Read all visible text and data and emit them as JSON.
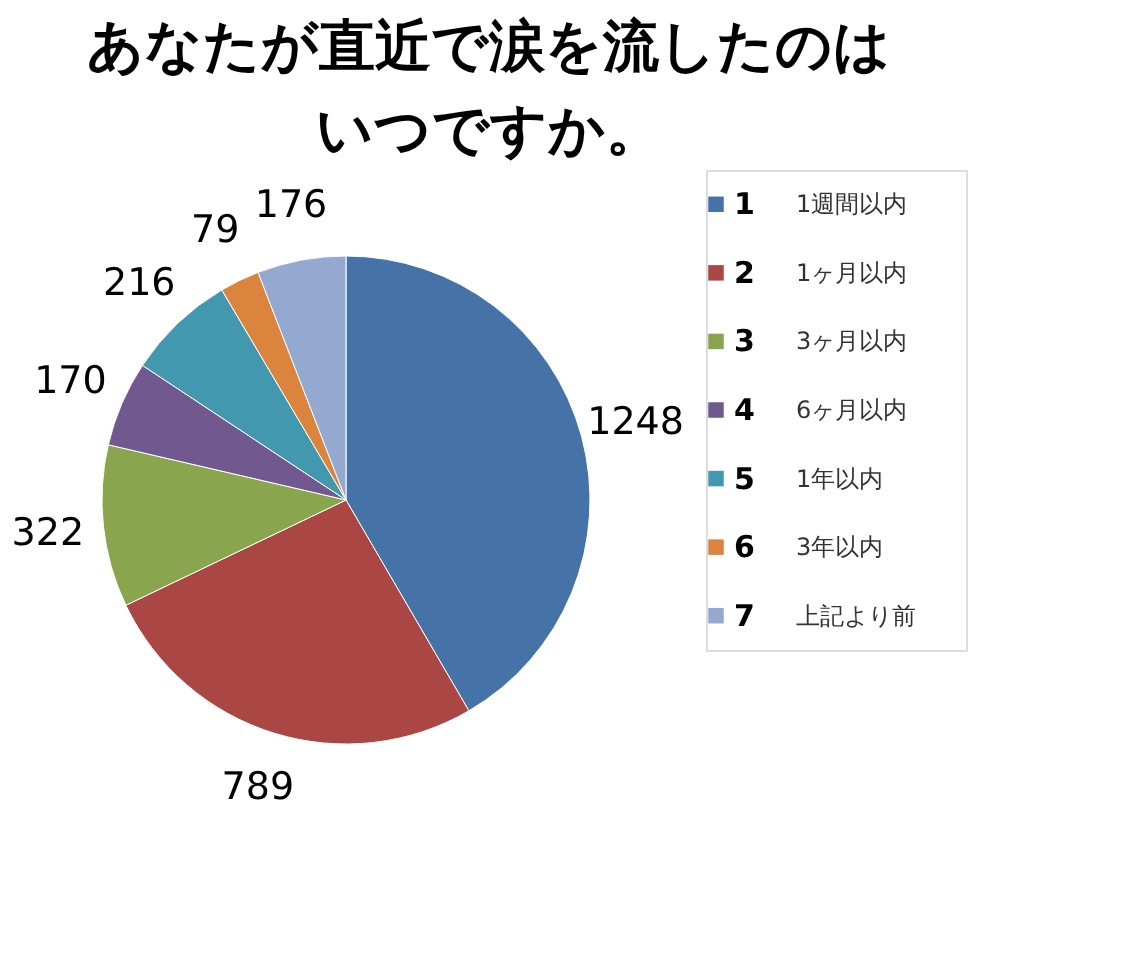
{
  "chart_data": {
    "type": "pie",
    "title": "あなたが直近で涙を流したのは",
    "subtitle": "いつですか。",
    "categories": [
      "1",
      "2",
      "3",
      "4",
      "5",
      "6",
      "7"
    ],
    "values": [
      1248,
      789,
      322,
      170,
      216,
      79,
      176
    ],
    "colors": [
      "#4572a7",
      "#aa4643",
      "#89a54e",
      "#71588f",
      "#4198af",
      "#db843d",
      "#93a9cf"
    ],
    "annotations": [
      "1週間以内",
      "1ヶ月以内",
      "3ヶ月以内",
      "6ヶ月以内",
      "1年以内",
      "3年以内",
      "上記より前"
    ],
    "data_labels": true,
    "legend": "right"
  }
}
